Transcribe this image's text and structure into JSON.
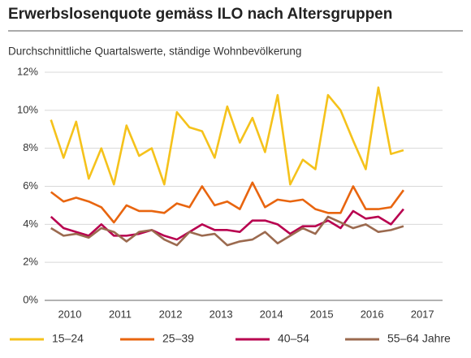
{
  "chart_data": {
    "type": "line",
    "title": "Erwerbslosenquote gemäss ILO nach Altersgruppen",
    "subtitle": "Durchschnittliche Quartalswerte, ständige Wohnbevölkerung",
    "x": [
      2010.125,
      2010.375,
      2010.625,
      2010.875,
      2011.125,
      2011.375,
      2011.625,
      2011.875,
      2012.125,
      2012.375,
      2012.625,
      2012.875,
      2013.125,
      2013.375,
      2013.625,
      2013.875,
      2014.125,
      2014.375,
      2014.625,
      2014.875,
      2015.125,
      2015.375,
      2015.625,
      2015.875,
      2016.125,
      2016.375,
      2016.625,
      2016.875,
      2017.125
    ],
    "xlim": [
      2010,
      2017.9
    ],
    "xticks": [
      {
        "value": 2010.5,
        "label": "2010"
      },
      {
        "value": 2011.5,
        "label": "2011"
      },
      {
        "value": 2012.5,
        "label": "2012"
      },
      {
        "value": 2013.5,
        "label": "2013"
      },
      {
        "value": 2014.5,
        "label": "2014"
      },
      {
        "value": 2015.5,
        "label": "2015"
      },
      {
        "value": 2016.5,
        "label": "2016"
      },
      {
        "value": 2017.5,
        "label": "2017"
      }
    ],
    "ylim": [
      0,
      12
    ],
    "yticks": [
      {
        "value": 0,
        "label": "0%"
      },
      {
        "value": 2,
        "label": "2%"
      },
      {
        "value": 4,
        "label": "4%"
      },
      {
        "value": 6,
        "label": "6%"
      },
      {
        "value": 8,
        "label": "8%"
      },
      {
        "value": 10,
        "label": "10%"
      },
      {
        "value": 12,
        "label": "12%"
      }
    ],
    "grid": true,
    "legend": "bottom",
    "series": [
      {
        "name": "15–24",
        "color": "#f5c21b",
        "values": [
          9.5,
          7.5,
          9.4,
          6.4,
          8.0,
          6.1,
          9.2,
          7.6,
          8.0,
          6.1,
          9.9,
          9.1,
          8.9,
          7.5,
          10.2,
          8.3,
          9.6,
          7.8,
          10.8,
          6.1,
          7.4,
          6.9,
          10.8,
          10.0,
          8.4,
          6.9,
          11.2,
          7.7,
          7.9
        ]
      },
      {
        "name": "25–39",
        "color": "#e8650f",
        "values": [
          5.7,
          5.2,
          5.4,
          5.2,
          4.9,
          4.1,
          5.0,
          4.7,
          4.7,
          4.6,
          5.1,
          4.9,
          6.0,
          5.0,
          5.2,
          4.8,
          6.2,
          4.9,
          5.3,
          5.2,
          5.3,
          4.8,
          4.6,
          4.6,
          6.0,
          4.8,
          4.8,
          4.9,
          5.8
        ]
      },
      {
        "name": "40–54",
        "color": "#b8004f",
        "values": [
          4.4,
          3.8,
          3.6,
          3.4,
          4.0,
          3.4,
          3.4,
          3.5,
          3.7,
          3.4,
          3.2,
          3.6,
          4.0,
          3.7,
          3.7,
          3.6,
          4.2,
          4.2,
          4.0,
          3.5,
          3.9,
          3.9,
          4.2,
          3.8,
          4.7,
          4.3,
          4.4,
          4.0,
          4.8
        ]
      },
      {
        "name": "55–64 Jahre",
        "color": "#9b6a4f",
        "values": [
          3.8,
          3.4,
          3.5,
          3.3,
          3.8,
          3.6,
          3.1,
          3.6,
          3.7,
          3.2,
          2.9,
          3.6,
          3.4,
          3.5,
          2.9,
          3.1,
          3.2,
          3.6,
          3.0,
          3.4,
          3.8,
          3.5,
          4.4,
          4.1,
          3.8,
          4.0,
          3.6,
          3.7,
          3.9
        ]
      }
    ]
  }
}
